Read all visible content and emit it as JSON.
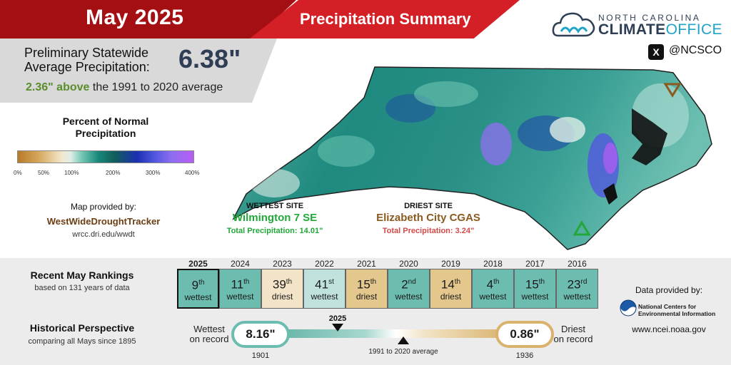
{
  "header": {
    "month": "May 2025",
    "title": "Precipitation Summary"
  },
  "statewide": {
    "label_line1": "Preliminary Statewide",
    "label_line2": "Average Precipitation:",
    "value": "6.38\"",
    "above_amount": "2.36\" above",
    "above_rest": " the 1991 to 2020 average"
  },
  "legend": {
    "title_line1": "Percent of Normal",
    "title_line2": "Precipitation",
    "ticks": [
      "0%",
      "50%",
      "100%",
      "200%",
      "300%",
      "400%"
    ]
  },
  "map_credit": {
    "label": "Map provided by:",
    "source": "WestWideDroughtTracker",
    "url": "wrcc.dri.edu/wwdt"
  },
  "wettest": {
    "header": "WETTEST SITE",
    "name": "Wilmington 7 SE",
    "total": "Total Precipitation: 14.01\""
  },
  "driest": {
    "header": "DRIEST SITE",
    "name": "Elizabeth City CGAS",
    "total": "Total Precipitation: 3.24\""
  },
  "logo": {
    "line1": "NORTH CAROLINA",
    "line2a": "CLIMATE",
    "line2b": "OFFICE",
    "x_glyph": "X",
    "handle": "@NCSCO"
  },
  "rankings": {
    "title": "Recent May Rankings",
    "subtitle": "based on 131 years of data",
    "years": [
      {
        "year": "2025",
        "rank": "9",
        "suffix": "th",
        "label": "wettest",
        "style": "wet-dark"
      },
      {
        "year": "2024",
        "rank": "11",
        "suffix": "th",
        "label": "wettest",
        "style": "wet-dark"
      },
      {
        "year": "2023",
        "rank": "39",
        "suffix": "th",
        "label": "driest",
        "style": "dry-light"
      },
      {
        "year": "2022",
        "rank": "41",
        "suffix": "st",
        "label": "wettest",
        "style": "wet-light"
      },
      {
        "year": "2021",
        "rank": "15",
        "suffix": "th",
        "label": "driest",
        "style": "dry-dark"
      },
      {
        "year": "2020",
        "rank": "2",
        "suffix": "nd",
        "label": "wettest",
        "style": "wet-dark"
      },
      {
        "year": "2019",
        "rank": "14",
        "suffix": "th",
        "label": "driest",
        "style": "dry-dark"
      },
      {
        "year": "2018",
        "rank": "4",
        "suffix": "th",
        "label": "wettest",
        "style": "wet-dark"
      },
      {
        "year": "2017",
        "rank": "15",
        "suffix": "th",
        "label": "wettest",
        "style": "wet-dark"
      },
      {
        "year": "2016",
        "rank": "23",
        "suffix": "rd",
        "label": "wettest",
        "style": "wet-dark"
      }
    ]
  },
  "historical": {
    "title": "Historical Perspective",
    "subtitle": "comparing all Mays since 1895",
    "wettest_label_1": "Wettest",
    "wettest_label_2": "on record",
    "wettest_value": "8.16\"",
    "wettest_year": "1901",
    "driest_label_1": "Driest",
    "driest_label_2": "on record",
    "driest_value": "0.86\"",
    "driest_year": "1936",
    "current_marker": "2025",
    "average_label": "1991 to 2020 average"
  },
  "noaa": {
    "label": "Data provided by:",
    "name_line1": "National Centers for",
    "name_line2": "Environmental Information",
    "url": "www.ncei.noaa.gov"
  },
  "colors": {
    "header_dark_red": "#a40f13",
    "header_red": "#d51f26",
    "wet_green": "#22a83a",
    "dry_brown": "#8a5a1f",
    "stat_navy": "#2f3d55"
  }
}
